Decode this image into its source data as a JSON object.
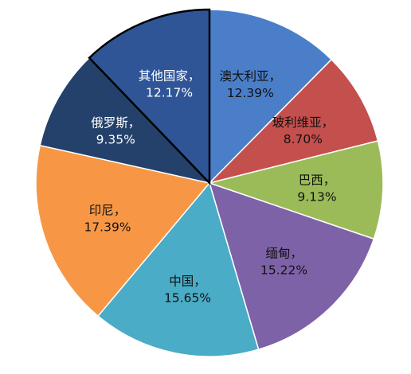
{
  "chart_data": {
    "type": "pie",
    "title": "",
    "start_angle_deg": 0,
    "direction": "clockwise",
    "highlighted_slice": "其他国家",
    "slices": [
      {
        "name": "澳大利亚",
        "percent_label": "12.39%",
        "value": 12.39,
        "color": "#4A7EC9"
      },
      {
        "name": "玻利维亚",
        "percent_label": "8.70%",
        "value": 8.7,
        "color": "#C4504D"
      },
      {
        "name": "巴西",
        "percent_label": "9.13%",
        "value": 9.13,
        "color": "#9BBB59"
      },
      {
        "name": "缅甸",
        "percent_label": "15.22%",
        "value": 15.22,
        "color": "#7E62A8"
      },
      {
        "name": "中国",
        "percent_label": "15.65%",
        "value": 15.65,
        "color": "#4AACC6"
      },
      {
        "name": "印尼",
        "percent_label": "17.39%",
        "value": 17.39,
        "color": "#F79745"
      },
      {
        "name": "俄罗斯",
        "percent_label": "9.35%",
        "value": 9.35,
        "color": "#23416B"
      },
      {
        "name": "其他国家",
        "percent_label": "12.17%",
        "value": 12.17,
        "color": "#2F5597"
      }
    ]
  }
}
